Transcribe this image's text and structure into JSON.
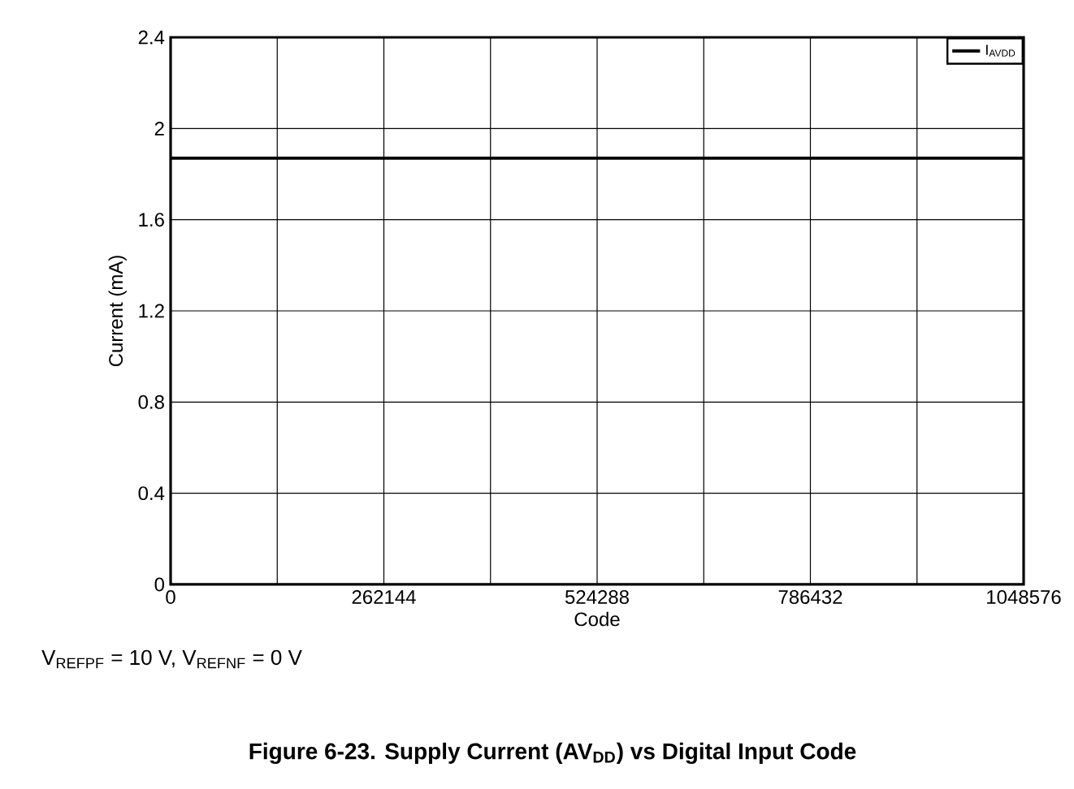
{
  "chart_data": {
    "type": "line",
    "title": "Figure 6-23. Supply Current (AV$_{DD}$) vs Digital Input Code",
    "xlabel": "Code",
    "ylabel": "Current (mA)",
    "annotations": [
      "V$_{REFPF}$ = 10 V, V$_{REFNF}$ = 0 V"
    ],
    "x": [
      0,
      1048576
    ],
    "series": [
      {
        "name": "I$_{AVDD}$",
        "color": "#000000",
        "values": [
          1.87,
          1.87
        ]
      }
    ],
    "xlim": [
      0,
      1048576
    ],
    "xticks": [
      0,
      {
        "value": 131072,
        "label": null
      },
      262144,
      {
        "value": 393216,
        "label": null
      },
      524288,
      {
        "value": 655360,
        "label": null
      },
      786432,
      {
        "value": 917504,
        "label": null
      },
      1048576
    ],
    "ylim": [
      0,
      2.4
    ],
    "yticks": [
      0,
      0.4,
      0.8,
      1.2,
      1.6,
      2,
      2.4
    ],
    "grid": true,
    "legend": "top right",
    "marker": "none",
    "line_style": "solid"
  }
}
